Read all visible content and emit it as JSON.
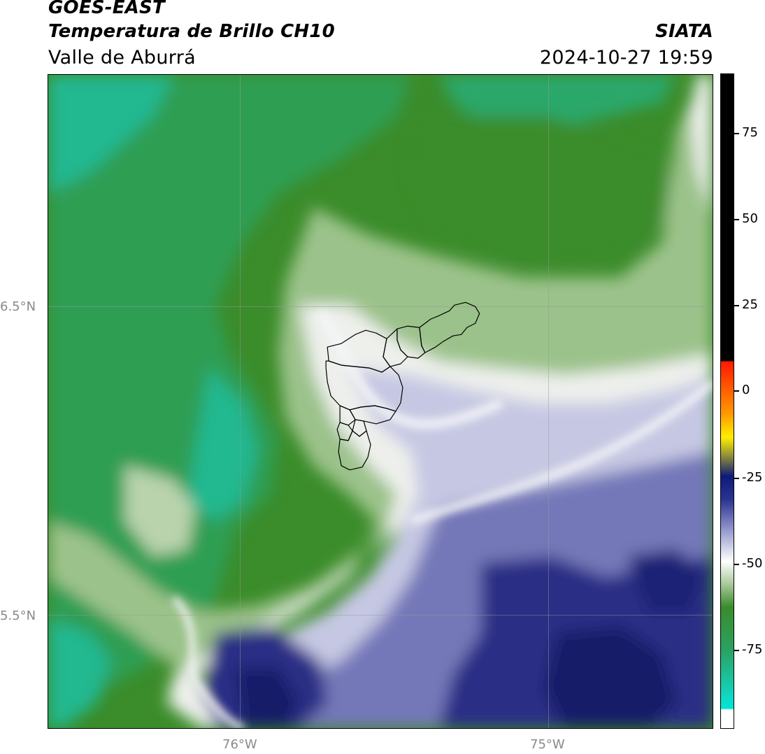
{
  "header": {
    "satellite": "GOES-EAST",
    "product": "Temperatura de Brillo CH10",
    "region": "Valle de Aburrá",
    "agency": "SIATA",
    "datetime": "2024-10-27 19:59"
  },
  "map": {
    "latitude_labels": [
      "6.5°N",
      "5.5°N"
    ],
    "longitude_labels": [
      "76°W",
      "75°W"
    ],
    "colors": {
      "cyan": "#1fc8a0",
      "green_light": "#2e9e52",
      "green_dark": "#3b8c2a",
      "pale_green": "#c9dcc0",
      "white": "#f4f5f7",
      "lavender": "#c6c8e3",
      "blue_mid": "#5b5ea8",
      "navy": "#1d2275",
      "outline": "#000000"
    }
  },
  "colorbar": {
    "tick_labels": [
      "75",
      "50",
      "25",
      "0",
      "-25",
      "-50",
      "-75"
    ],
    "colors": {
      "black": "#000000",
      "red": "#ff1a00",
      "orange": "#ff8c00",
      "yellow": "#ffee00",
      "olive": "#8a8a3a",
      "navy": "#0e1a7a",
      "periwinkle": "#a6a9d6",
      "white": "#ffffff",
      "green": "#3a8c2c",
      "cyan": "#00e5d5"
    }
  }
}
